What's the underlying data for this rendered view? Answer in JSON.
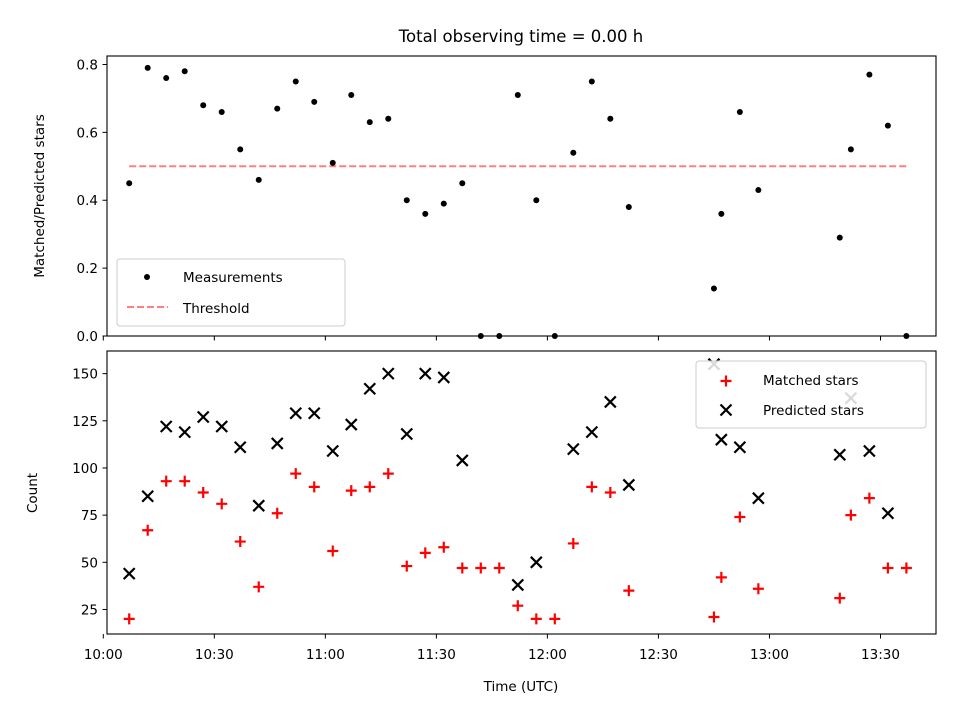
{
  "chart_data": [
    {
      "type": "scatter",
      "title": "Total observing time = 0.00 h",
      "xlabel": "",
      "ylabel": "Matched/Predicted stars",
      "xlim": [
        "10:01",
        "13:45"
      ],
      "ylim": [
        0,
        0.825
      ],
      "yticks": [
        "0.0",
        "0.2",
        "0.4",
        "0.6",
        "0.8"
      ],
      "grid": false,
      "legend_position": "lower-left",
      "series": [
        {
          "name": "Measurements",
          "kind": "scatter",
          "color": "#000000",
          "x": [
            "10:07",
            "10:12",
            "10:17",
            "10:22",
            "10:27",
            "10:32",
            "10:37",
            "10:42",
            "10:47",
            "10:52",
            "10:57",
            "11:02",
            "11:07",
            "11:12",
            "11:17",
            "11:22",
            "11:27",
            "11:32",
            "11:37",
            "11:42",
            "11:47",
            "11:52",
            "11:57",
            "12:02",
            "12:07",
            "12:12",
            "12:17",
            "12:22",
            "12:45",
            "12:47",
            "12:52",
            "12:57",
            "13:19",
            "13:22",
            "13:27",
            "13:32",
            "13:37"
          ],
          "y": [
            0.45,
            0.79,
            0.76,
            0.78,
            0.68,
            0.66,
            0.55,
            0.46,
            0.67,
            0.75,
            0.69,
            0.51,
            0.71,
            0.63,
            0.64,
            0.4,
            0.36,
            0.39,
            0.45,
            0.0,
            0.0,
            0.71,
            0.4,
            0.0,
            0.54,
            0.75,
            0.64,
            0.38,
            0.14,
            0.36,
            0.66,
            0.43,
            0.29,
            0.55,
            0.77,
            0.62,
            0.0
          ]
        },
        {
          "name": "Threshold",
          "kind": "line",
          "style": "dashed",
          "color": "#ff7f7f",
          "x": [
            "10:07",
            "13:37"
          ],
          "y": [
            0.5,
            0.5
          ]
        }
      ]
    },
    {
      "type": "scatter",
      "title": "",
      "xlabel": "Time (UTC)",
      "ylabel": "Count",
      "xlim": [
        "10:01",
        "13:45"
      ],
      "ylim": [
        12,
        162
      ],
      "xticks": [
        "10:00",
        "10:30",
        "11:00",
        "11:30",
        "12:00",
        "12:30",
        "13:00",
        "13:30"
      ],
      "yticks": [
        "25",
        "50",
        "75",
        "100",
        "125",
        "150"
      ],
      "grid": false,
      "legend_position": "upper-right",
      "series": [
        {
          "name": "Matched stars",
          "marker": "plus",
          "color": "#ff0000",
          "x": [
            "10:07",
            "10:12",
            "10:17",
            "10:22",
            "10:27",
            "10:32",
            "10:37",
            "10:42",
            "10:47",
            "10:52",
            "10:57",
            "11:02",
            "11:07",
            "11:12",
            "11:17",
            "11:22",
            "11:27",
            "11:32",
            "11:37",
            "11:42",
            "11:47",
            "11:52",
            "11:57",
            "12:02",
            "12:07",
            "12:12",
            "12:17",
            "12:22",
            "12:45",
            "12:47",
            "12:52",
            "12:57",
            "13:19",
            "13:22",
            "13:27",
            "13:32",
            "13:37"
          ],
          "y": [
            20,
            67,
            93,
            93,
            87,
            81,
            61,
            37,
            76,
            97,
            90,
            56,
            88,
            90,
            97,
            48,
            55,
            58,
            47,
            47,
            47,
            27,
            20,
            20,
            60,
            90,
            87,
            35,
            21,
            42,
            74,
            36,
            31,
            75,
            84,
            47,
            47
          ]
        },
        {
          "name": "Predicted stars",
          "marker": "x",
          "color": "#000000",
          "x": [
            "10:07",
            "10:12",
            "10:17",
            "10:22",
            "10:27",
            "10:32",
            "10:37",
            "10:42",
            "10:47",
            "10:52",
            "10:57",
            "11:02",
            "11:07",
            "11:12",
            "11:17",
            "11:22",
            "11:27",
            "11:32",
            "11:37",
            "11:52",
            "11:57",
            "12:07",
            "12:12",
            "12:17",
            "12:22",
            "12:45",
            "12:47",
            "12:52",
            "12:57",
            "13:19",
            "13:22",
            "13:27",
            "13:32"
          ],
          "y": [
            44,
            85,
            122,
            119,
            127,
            122,
            111,
            80,
            113,
            129,
            129,
            109,
            123,
            142,
            150,
            118,
            150,
            148,
            104,
            38,
            50,
            110,
            119,
            135,
            91,
            155,
            115,
            111,
            84,
            107,
            137,
            109,
            76
          ]
        }
      ]
    }
  ]
}
